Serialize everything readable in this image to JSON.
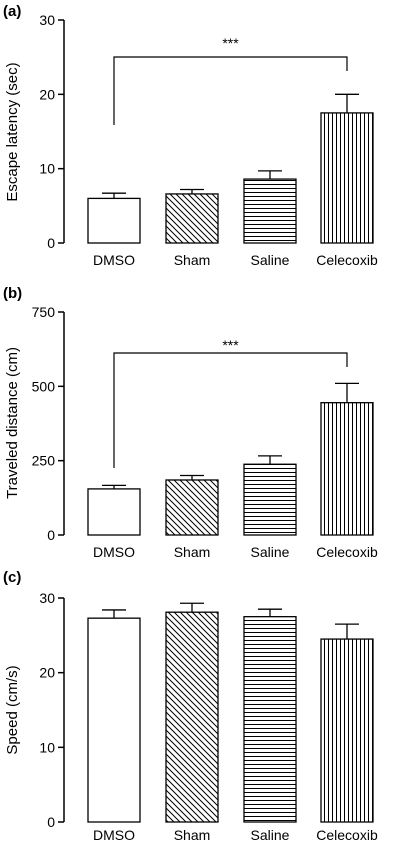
{
  "chart_data": [
    {
      "type": "bar",
      "panel_label": "(a)",
      "ylabel": "Escape latency (sec)",
      "xlabel": "",
      "categories": [
        "DMSO",
        "Sham",
        "Saline",
        "Celecoxib"
      ],
      "values": [
        6.0,
        6.6,
        8.6,
        17.5
      ],
      "errors": [
        0.7,
        0.6,
        1.1,
        2.5
      ],
      "patterns": [
        "none",
        "diag",
        "horiz",
        "vert"
      ],
      "ylim": [
        0,
        30
      ],
      "yticks": [
        "0",
        "10",
        "20",
        "30"
      ],
      "significance": {
        "from": 0,
        "to": 3,
        "label": "***"
      }
    },
    {
      "type": "bar",
      "panel_label": "(b)",
      "ylabel": "Traveled distance (cm)",
      "xlabel": "",
      "categories": [
        "DMSO",
        "Sham",
        "Saline",
        "Celecoxib"
      ],
      "values": [
        155,
        185,
        238,
        445
      ],
      "errors": [
        12,
        15,
        28,
        65
      ],
      "patterns": [
        "none",
        "diag",
        "horiz",
        "vert"
      ],
      "ylim": [
        0,
        750
      ],
      "yticks": [
        "0",
        "250",
        "500",
        "750"
      ],
      "significance": {
        "from": 0,
        "to": 3,
        "label": "***"
      }
    },
    {
      "type": "bar",
      "panel_label": "(c)",
      "ylabel": "Speed (cm/s)",
      "xlabel": "",
      "categories": [
        "DMSO",
        "Sham",
        "Saline",
        "Celecoxib"
      ],
      "values": [
        27.3,
        28.1,
        27.5,
        24.5
      ],
      "errors": [
        1.1,
        1.2,
        1.0,
        2.0
      ],
      "patterns": [
        "none",
        "diag",
        "horiz",
        "vert"
      ],
      "ylim": [
        0,
        30
      ],
      "yticks": [
        "0",
        "10",
        "20",
        "30"
      ],
      "significance": null
    }
  ]
}
